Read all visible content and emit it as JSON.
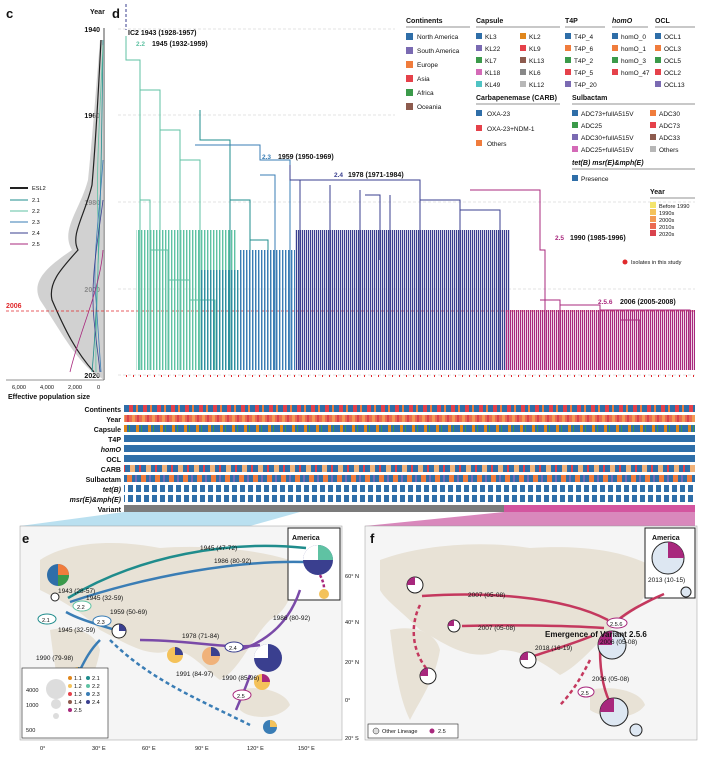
{
  "panel_c": {
    "letter": "c",
    "year_axis_label": "Year",
    "years": [
      "1940",
      "1960",
      "1980",
      "2000",
      "2020"
    ],
    "x_ticks": [
      "6,000",
      "4,000",
      "2,000",
      "0"
    ],
    "xlabel": "Effective population size",
    "marker_year": "2006",
    "legend": [
      "ESL2",
      "2.1",
      "2.2",
      "2.3",
      "2.4",
      "2.5"
    ]
  },
  "panel_d": {
    "letter": "d",
    "nodes": [
      {
        "id": "IC2",
        "text": "IC2  1943 (1928-1957)"
      },
      {
        "id": "2.2",
        "text": "1945 (1932-1959)"
      },
      {
        "id": "2.3",
        "text": "1959 (1950-1969)"
      },
      {
        "id": "2.4",
        "text": "1978 (1971-1984)"
      },
      {
        "id": "2.5",
        "text": "1990 (1985-1996)"
      },
      {
        "id": "2.5.6",
        "text": "2006 (2005-2008)"
      }
    ],
    "node_labels": [
      "2.2",
      "2.3",
      "2.4",
      "2.5",
      "2.5.6"
    ],
    "track_labels": [
      "Continents",
      "Year",
      "Capsule",
      "T4P",
      "homO",
      "OCL",
      "CARB",
      "Sulbactam",
      "tet(B)",
      "msr(E)&mph(E)",
      "Variant"
    ],
    "legend": {
      "continents_title": "Continents",
      "continents": [
        "North America",
        "South America",
        "Europe",
        "Asia",
        "Africa",
        "Oceania"
      ],
      "capsule_title": "Capsule",
      "capsule": [
        "KL3",
        "KL2",
        "KL22",
        "KL9",
        "KL7",
        "KL13",
        "KL18",
        "KL6",
        "KL49",
        "KL12"
      ],
      "t4p_title": "T4P",
      "t4p": [
        "T4P_4",
        "T4P_6",
        "T4P_2",
        "T4P_5",
        "T4P_20"
      ],
      "homo_title": "homO",
      "homo": [
        "homO_0",
        "homO_1",
        "homO_3",
        "homO_47"
      ],
      "ocl_title": "OCL",
      "ocl": [
        "OCL1",
        "OCL3",
        "OCL5",
        "OCL2",
        "OCL13"
      ],
      "carb_title": "Carbapenemase (CARB)",
      "carb": [
        "OXA-23",
        "OXA-23+NDM-1",
        "Others"
      ],
      "sulb_title": "Sulbactam",
      "sulb": [
        "ADC73+fullA515V",
        "ADC30",
        "ADC25",
        "ADC73",
        "ADC30+fullA515V",
        "ADC33",
        "ADC25+fullA515V",
        "Others"
      ],
      "tet_title": "tet(B)  msr(E)&mph(E)",
      "tet": [
        "Presence"
      ],
      "year_title": "Year",
      "year": [
        "Before 1990",
        "1990s",
        "2000s",
        "2010s",
        "2020s"
      ],
      "isolates": "Isolates in this study"
    }
  },
  "panel_e": {
    "letter": "e",
    "region_label": "America",
    "lat_labels": [
      "60° N",
      "40° N",
      "20° N",
      "0°",
      "20° S"
    ],
    "lon_labels": [
      "0°",
      "30° E",
      "60° E",
      "90° E",
      "120° E",
      "150° E"
    ],
    "events": [
      "1943 (28-57)",
      "1945 (32-59)",
      "1945 (32-59)",
      "1945 (47-72)",
      "1986 (80-92)",
      "1959 (50-69)",
      "1978 (71-84)",
      "1986 (80-92)",
      "1990 (79-98)",
      "1990 (85-96)",
      "1991 (84-97)"
    ],
    "bubbles": [
      "2.1",
      "2.2",
      "2.3",
      "2.4",
      "2.5"
    ],
    "size_legend": [
      "4000",
      "1000",
      "500"
    ],
    "lineage_legend": [
      "1.1",
      "1.2",
      "1.3",
      "1.4",
      "2.1",
      "2.2",
      "2.3",
      "2.4",
      "2.5"
    ]
  },
  "panel_f": {
    "letter": "f",
    "region_label": "America",
    "events": [
      "2013 (10-15)",
      "2007 (05-08)",
      "2007 (05-08)",
      "2018 (16-19)",
      "2006 (05-08)",
      "2006 (05-08)"
    ],
    "bubbles": [
      "2.5.6",
      "2.5"
    ],
    "emergence": "Emergence of Variant 2.5.6",
    "legend": [
      "Other Lineage",
      "2.5"
    ]
  },
  "colors": {
    "c21": "#1f8c8c",
    "c22": "#5fc2a3",
    "c23": "#3a7db5",
    "c24": "#3a3f8f",
    "c25": "#a8287d",
    "na": "#2f6ea8",
    "sa": "#7a6ab2",
    "eu": "#f07c3c",
    "asia": "#e5414a",
    "af": "#3b9a4a",
    "oc": "#8d5b4e",
    "red": "#e0292c"
  }
}
